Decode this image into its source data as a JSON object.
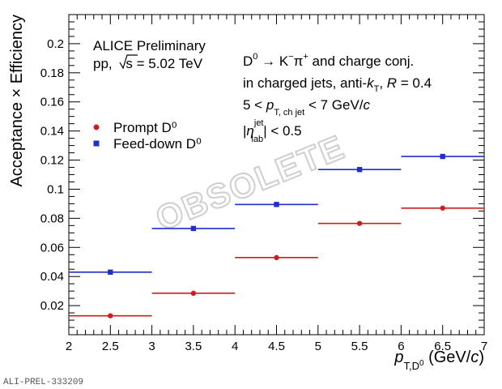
{
  "colors": {
    "prompt": "#cc1f1f",
    "feeddown": "#1f2fcc",
    "frame": "#000000",
    "watermark_stroke": "#cfcfcf"
  },
  "watermark": "OBSOLETE",
  "figure_id": "ALI-PREL-333209",
  "annotations": {
    "line1": "ALICE Preliminary",
    "line2_prefix": "pp, ",
    "line2_s": "s",
    "line2_suffix": " = 5.02 TeV",
    "decay_d": "D",
    "decay_d_sup": "0",
    "decay_arrow": " → K",
    "decay_k_sup": "−",
    "decay_pi": "π",
    "decay_pi_sup": "+",
    "decay_tail": " and charge conj.",
    "jets_prefix": "in charged jets, anti-",
    "jets_k": "k",
    "jets_k_sub": "T",
    "jets_mid": ", ",
    "jets_R": "R",
    "jets_tail": " = 0.4",
    "pt_prefix": "5 < ",
    "pt_p": "p",
    "pt_sub": "T, ch jet",
    "pt_tail": " < 7 GeV/",
    "pt_c": "c",
    "eta_bar_l": "|",
    "eta_eta": "η",
    "eta_sup": "jet",
    "eta_sub": "lab",
    "eta_tail": "| < 0.5"
  },
  "chart_data": {
    "type": "scatter",
    "title": "",
    "xlabel": "p_T,D^0 (GeV/c)",
    "xlabel_parts": {
      "p": "p",
      "sub": "T,D",
      "sub_sup": "0",
      "unit": " (GeV/",
      "c": "c",
      "close": ")"
    },
    "ylabel": "Acceptance × Efficiency",
    "xlim": [
      2,
      7
    ],
    "ylim": [
      0,
      0.22
    ],
    "xticks": [
      "2",
      "2.5",
      "3",
      "3.5",
      "4",
      "4.5",
      "5",
      "5.5",
      "6",
      "6.5",
      "7"
    ],
    "yticks": [
      "0.02",
      "0.04",
      "0.06",
      "0.08",
      "0.1",
      "0.12",
      "0.14",
      "0.16",
      "0.18",
      "0.2"
    ],
    "legend_position": "middle-left",
    "grid": false,
    "series": [
      {
        "name": "Prompt D⁰",
        "marker": "circle",
        "color": "#cc1f1f",
        "points": [
          {
            "x": 2.5,
            "xlo": 2,
            "xhi": 3,
            "y": 0.013
          },
          {
            "x": 3.5,
            "xlo": 3,
            "xhi": 4,
            "y": 0.0285
          },
          {
            "x": 4.5,
            "xlo": 4,
            "xhi": 5,
            "y": 0.053
          },
          {
            "x": 5.5,
            "xlo": 5,
            "xhi": 6,
            "y": 0.0765
          },
          {
            "x": 6.5,
            "xlo": 6,
            "xhi": 7,
            "y": 0.087
          }
        ]
      },
      {
        "name": "Feed-down D⁰",
        "marker": "square",
        "color": "#1f2fcc",
        "points": [
          {
            "x": 2.5,
            "xlo": 2,
            "xhi": 3,
            "y": 0.043
          },
          {
            "x": 3.5,
            "xlo": 3,
            "xhi": 4,
            "y": 0.073
          },
          {
            "x": 4.5,
            "xlo": 4,
            "xhi": 5,
            "y": 0.0895
          },
          {
            "x": 5.5,
            "xlo": 5,
            "xhi": 6,
            "y": 0.1135
          },
          {
            "x": 6.5,
            "xlo": 6,
            "xhi": 7,
            "y": 0.1225
          }
        ]
      }
    ]
  }
}
